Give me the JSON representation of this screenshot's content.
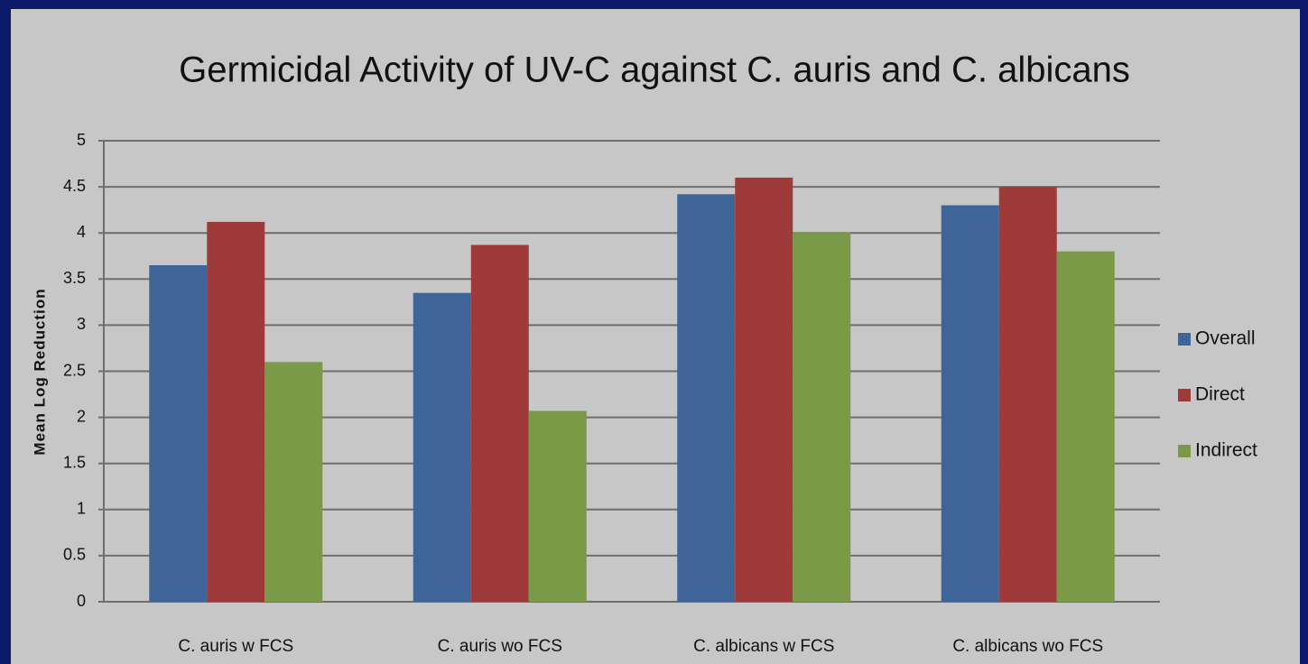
{
  "chart_data": {
    "type": "bar",
    "title": "Germicidal Activity of UV-C against C. auris and C. albicans",
    "y_label": "Mean Log Reduction",
    "categories": [
      "C. auris w FCS",
      "C. auris wo FCS",
      "C. albicans w FCS",
      "C. albicans wo FCS"
    ],
    "series": [
      {
        "name": "Overall",
        "color": "#3f6598",
        "values": [
          3.65,
          3.35,
          4.42,
          4.3
        ]
      },
      {
        "name": "Direct",
        "color": "#9e3b3a",
        "values": [
          4.12,
          3.87,
          4.6,
          4.5
        ]
      },
      {
        "name": "Indirect",
        "color": "#7b9a47",
        "values": [
          2.6,
          2.07,
          4.01,
          3.8
        ]
      }
    ],
    "ylim": [
      0,
      5
    ],
    "yticks": [
      0,
      0.5,
      1,
      1.5,
      2,
      2.5,
      3,
      3.5,
      4,
      4.5,
      5
    ],
    "grid": true,
    "legend": "right"
  }
}
